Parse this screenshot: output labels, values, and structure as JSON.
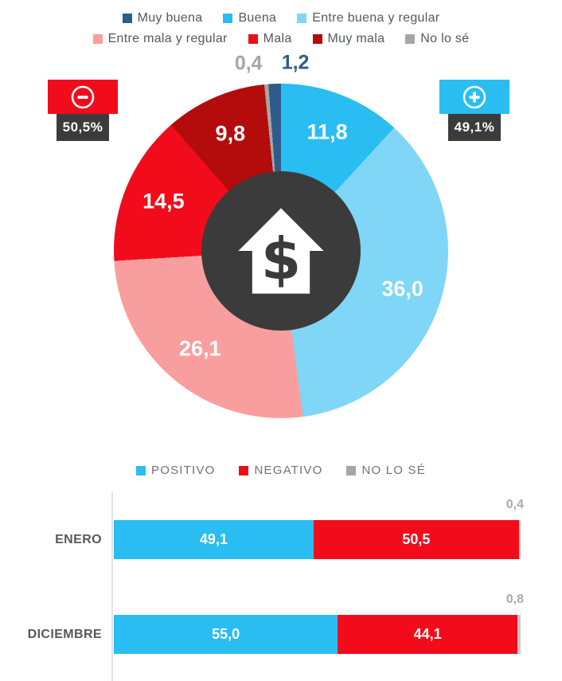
{
  "pie": {
    "negative_badge": {
      "symbol": "minus",
      "value": "50,5%",
      "color": "#F20C1B"
    },
    "positive_badge": {
      "symbol": "plus",
      "value": "49,1%",
      "color": "#29BDF2"
    },
    "center_icon": "house-dollar",
    "badge_panel_color": "#3B3B3B"
  },
  "chart_data": [
    {
      "type": "pie",
      "donut": true,
      "legend_position": "top",
      "categories": [
        "Muy buena",
        "Buena",
        "Entre buena y regular",
        "Entre mala y regular",
        "Mala",
        "Muy mala",
        "No lo sé"
      ],
      "values": [
        1.2,
        11.8,
        36.0,
        26.1,
        14.5,
        9.8,
        0.4
      ],
      "display_labels": [
        "1,2",
        "11,8",
        "36,0",
        "26,1",
        "14,5",
        "9,8",
        "0,4"
      ],
      "colors": [
        "#2E5C8A",
        "#29BDF2",
        "#7FD6F7",
        "#F99E9E",
        "#F20C1B",
        "#B40C0C",
        "#A6A6A6"
      ]
    },
    {
      "type": "bar",
      "orientation": "horizontal",
      "stacked": true,
      "unit": "percent",
      "legend_position": "top",
      "legend": [
        {
          "label": "POSITIVO",
          "color": "#29BDF2"
        },
        {
          "label": "NEGATIVO",
          "color": "#F20C1B"
        },
        {
          "label": "NO LO SÉ",
          "color": "#A6A6A6"
        }
      ],
      "categories": [
        "ENERO",
        "DICIEMBRE"
      ],
      "series": [
        {
          "name": "POSITIVO",
          "color": "#29BDF2",
          "values": [
            49.1,
            55.0
          ],
          "display_labels": [
            "49,1",
            "55,0"
          ]
        },
        {
          "name": "NEGATIVO",
          "color": "#F20C1B",
          "values": [
            50.5,
            44.1
          ],
          "display_labels": [
            "50,5",
            "44,1"
          ]
        },
        {
          "name": "NO LO SÉ",
          "color": "#C9C9C9",
          "values": [
            0.4,
            0.8
          ],
          "display_labels": [
            "0,4",
            "0,8"
          ]
        }
      ]
    }
  ]
}
